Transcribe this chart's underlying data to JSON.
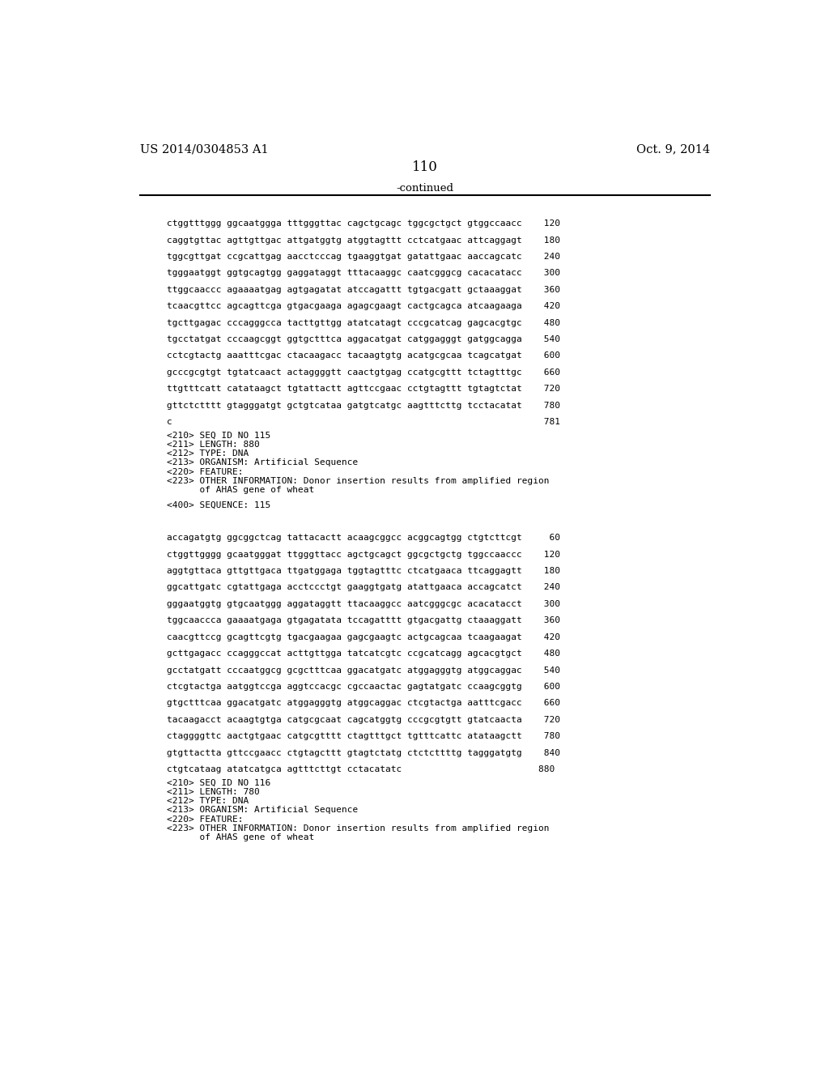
{
  "header_left": "US 2014/0304853 A1",
  "header_right": "Oct. 9, 2014",
  "page_number": "110",
  "continued_label": "-continued",
  "background_color": "#ffffff",
  "text_color": "#000000",
  "font_size_mono": 8.0,
  "font_size_header": 10.5,
  "font_size_page": 12,
  "seq_lines_cont": [
    "ctggtttggg ggcaatggga tttgggttac cagctgcagc tggcgctgct gtggccaacc    120",
    "caggtgttac agttgttgac attgatggtg atggtagttt cctcatgaac attcaggagt    180",
    "tggcgttgat ccgcattgag aacctcccag tgaaggtgat gatattgaac aaccagcatc    240",
    "tgggaatggt ggtgcagtgg gaggataggt tttacaaggc caatcgggcg cacacatacc    300",
    "ttggcaaccc agaaaatgag agtgagatat atccagattt tgtgacgatt gctaaaggat    360",
    "tcaacgttcc agcagttcga gtgacgaaga agagcgaagt cactgcagca atcaagaaga    420",
    "tgcttgagac cccagggcca tacttgttgg atatcatagt cccgcatcag gagcacgtgc    480",
    "tgcctatgat cccaagcggt ggtgctttca aggacatgat catggagggt gatggcagga    540",
    "cctcgtactg aaatttcgac ctacaagacc tacaagtgtg acatgcgcaa tcagcatgat    600",
    "gcccgcgtgt tgtatcaact actaggggtt caactgtgag ccatgcgttt tctagtttgc    660",
    "ttgtttcatt catataagct tgtattactt agttccgaac cctgtagttt tgtagtctat    720",
    "gttctctttt gtagggatgt gctgtcataa gatgtcatgc aagtttcttg tcctacatat    780",
    "c                                                                    781"
  ],
  "metadata_115": [
    "<210> SEQ ID NO 115",
    "<211> LENGTH: 880",
    "<212> TYPE: DNA",
    "<213> ORGANISM: Artificial Sequence",
    "<220> FEATURE:",
    "<223> OTHER INFORMATION: Donor insertion results from amplified region",
    "      of AHAS gene of wheat"
  ],
  "seq_label_115": "<400> SEQUENCE: 115",
  "seq_lines_115": [
    "accagatgtg ggcggctcag tattacactt acaagcggcc acggcagtgg ctgtcttcgt     60",
    "ctggttgggg gcaatgggat ttgggttacc agctgcagct ggcgctgctg tggccaaccc    120",
    "aggtgttaca gttgttgaca ttgatggaga tggtagtttc ctcatgaaca ttcaggagtt    180",
    "ggcattgatc cgtattgaga acctccctgt gaaggtgatg atattgaaca accagcatct    240",
    "gggaatggtg gtgcaatggg aggataggtt ttacaaggcc aatcgggcgc acacatacct    300",
    "tggcaaccca gaaaatgaga gtgagatata tccagatttt gtgacgattg ctaaaggatt    360",
    "caacgttccg gcagttcgtg tgacgaagaa gagcgaagtc actgcagcaa tcaagaagat    420",
    "gcttgagacc ccagggccat acttgttgga tatcatcgtc ccgcatcagg agcacgtgct    480",
    "gcctatgatt cccaatggcg gcgctttcaa ggacatgatc atggagggtg atggcaggac    540",
    "ctcgtactga aatggtccga aggtccacgc cgccaactac gagtatgatc ccaagcggtg    600",
    "gtgctttcaa ggacatgatc atggagggtg atggcaggac ctcgtactga aatttcgacc    660",
    "tacaagacct acaagtgtga catgcgcaat cagcatggtg cccgcgtgtt gtatcaacta    720",
    "ctaggggttc aactgtgaac catgcgtttt ctagtttgct tgtttcattc atataagctt    780",
    "gtgttactta gttccgaacc ctgtagcttt gtagtctatg ctctcttttg tagggatgtg    840",
    "ctgtcataag atatcatgca agtttcttgt cctacatatc                         880"
  ],
  "metadata_116": [
    "<210> SEQ ID NO 116",
    "<211> LENGTH: 780",
    "<212> TYPE: DNA",
    "<213> ORGANISM: Artificial Sequence",
    "<220> FEATURE:",
    "<223> OTHER INFORMATION: Donor insertion results from amplified region",
    "      of AHAS gene of wheat"
  ]
}
